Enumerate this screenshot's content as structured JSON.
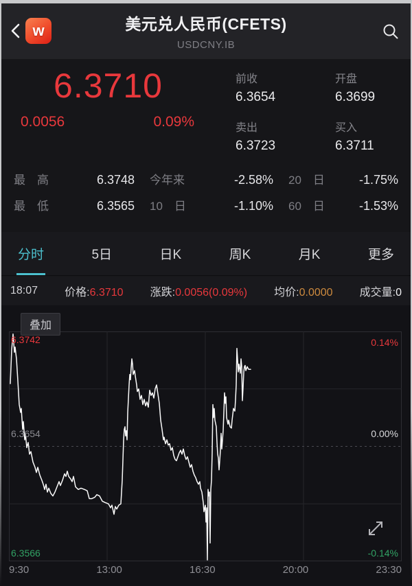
{
  "header": {
    "title": "美元兑人民币(CFETS)",
    "subtitle": "USDCNY.IB",
    "logo_text": "w"
  },
  "quote": {
    "price": "6.3710",
    "change": "0.0056",
    "change_pct": "0.09%",
    "fields": [
      {
        "label": "前收",
        "value": "6.3654"
      },
      {
        "label": "开盘",
        "value": "6.3699"
      },
      {
        "label": "卖出",
        "value": "6.3723"
      },
      {
        "label": "买入",
        "value": "6.3711"
      }
    ]
  },
  "stats": {
    "rows": [
      [
        {
          "label": "最　高",
          "value": "6.3748"
        },
        {
          "label": "今年来",
          "value": "-2.58%"
        },
        {
          "label": "20　日",
          "value": "-1.75%"
        }
      ],
      [
        {
          "label": "最　低",
          "value": "6.3565"
        },
        {
          "label": "10　日",
          "value": "-1.10%"
        },
        {
          "label": "60　日",
          "value": "-1.53%"
        }
      ]
    ]
  },
  "tabs": [
    {
      "label": "分时",
      "active": true
    },
    {
      "label": "5日",
      "active": false
    },
    {
      "label": "日K",
      "active": false
    },
    {
      "label": "周K",
      "active": false
    },
    {
      "label": "月K",
      "active": false
    },
    {
      "label": "更多",
      "active": false
    }
  ],
  "info_bar": {
    "time": "18:07",
    "price_label": "价格:",
    "price": "6.3710",
    "change_label": "涨跌:",
    "change": "0.0056(0.09%)",
    "avg_label": "均价:",
    "avg": "0.0000",
    "volume_label": "成交量:",
    "volume": "0"
  },
  "chart": {
    "overlay_label": "叠加"
  },
  "colors": {
    "up_red": "#e8383c",
    "down_green": "#31a264",
    "accent_cyan": "#4cc0ce",
    "avg_orange": "#cd8a3e",
    "line_white": "#fafafa"
  },
  "chart_data": {
    "type": "line",
    "title": "分时 (intraday)",
    "x_axis_labels": [
      "9:30",
      "13:00",
      "16:30",
      "20:00",
      "23:30"
    ],
    "y_axis_left_labels": [
      "6.3742",
      "6.3654",
      "6.3566"
    ],
    "y_axis_right_labels": [
      "0.14%",
      "0.00%",
      "-0.14%"
    ],
    "y_max": 6.3742,
    "y_min": 6.3566,
    "baseline_prev_close": 6.3654,
    "grid": {
      "v_positions": [
        0.25,
        0.5,
        0.75
      ],
      "h_positions": [
        0.25,
        0.5,
        0.75
      ],
      "mid_dashed": true,
      "legend": "none"
    },
    "series": [
      {
        "name": "price",
        "color": "#fafafa",
        "points": [
          [
            0.0035,
            6.3702
          ],
          [
            0.007,
            6.3728
          ],
          [
            0.0105,
            6.374
          ],
          [
            0.014,
            6.3726
          ],
          [
            0.0157,
            6.373
          ],
          [
            0.0192,
            6.3721
          ],
          [
            0.0227,
            6.3704
          ],
          [
            0.0262,
            6.3686
          ],
          [
            0.0297,
            6.368
          ],
          [
            0.0315,
            6.3683
          ],
          [
            0.035,
            6.3667
          ],
          [
            0.0367,
            6.3673
          ],
          [
            0.0402,
            6.3659
          ],
          [
            0.042,
            6.3664
          ],
          [
            0.0455,
            6.3653
          ],
          [
            0.049,
            6.3657
          ],
          [
            0.0524,
            6.3648
          ],
          [
            0.0559,
            6.365
          ],
          [
            0.0612,
            6.3642
          ],
          [
            0.0664,
            6.3638
          ],
          [
            0.0699,
            6.3634
          ],
          [
            0.0734,
            6.3638
          ],
          [
            0.0787,
            6.3632
          ],
          [
            0.0839,
            6.3628
          ],
          [
            0.0874,
            6.3625
          ],
          [
            0.0909,
            6.3621
          ],
          [
            0.0944,
            6.3625
          ],
          [
            0.0979,
            6.3619
          ],
          [
            0.1014,
            6.3622
          ],
          [
            0.1066,
            6.3618
          ],
          [
            0.1119,
            6.3616
          ],
          [
            0.1171,
            6.3619
          ],
          [
            0.1224,
            6.3623
          ],
          [
            0.1276,
            6.3627
          ],
          [
            0.1311,
            6.3624
          ],
          [
            0.1364,
            6.3628
          ],
          [
            0.1416,
            6.3633
          ],
          [
            0.1451,
            6.3631
          ],
          [
            0.1486,
            6.3635
          ],
          [
            0.1521,
            6.3631
          ],
          [
            0.1573,
            6.3629
          ],
          [
            0.1608,
            6.3627
          ],
          [
            0.1643,
            6.3631
          ],
          [
            0.1696,
            6.3623
          ],
          [
            0.1766,
            6.3621
          ],
          [
            0.1836,
            6.3622
          ],
          [
            0.1923,
            6.3621
          ],
          [
            0.1993,
            6.362
          ],
          [
            0.2045,
            6.3614
          ],
          [
            0.2115,
            6.3614
          ],
          [
            0.2185,
            6.3615
          ],
          [
            0.2238,
            6.3617
          ],
          [
            0.2308,
            6.3616
          ],
          [
            0.2378,
            6.3612
          ],
          [
            0.2448,
            6.3611
          ],
          [
            0.2535,
            6.361
          ],
          [
            0.2587,
            6.3607
          ],
          [
            0.2622,
            6.3609
          ],
          [
            0.2675,
            6.3602
          ],
          [
            0.271,
            6.3608
          ],
          [
            0.2745,
            6.3606
          ],
          [
            0.2797,
            6.3609
          ],
          [
            0.285,
            6.361
          ],
          [
            0.2885,
            6.3628
          ],
          [
            0.292,
            6.3659
          ],
          [
            0.2937,
            6.3667
          ],
          [
            0.2955,
            6.3669
          ],
          [
            0.2972,
            6.3662
          ],
          [
            0.299,
            6.3666
          ],
          [
            0.3007,
            6.3659
          ],
          [
            0.3024,
            6.368
          ],
          [
            0.3059,
            6.3701
          ],
          [
            0.3077,
            6.3709
          ],
          [
            0.3094,
            6.3705
          ],
          [
            0.3112,
            6.3714
          ],
          [
            0.3129,
            6.3721
          ],
          [
            0.3147,
            6.3717
          ],
          [
            0.3164,
            6.3709
          ],
          [
            0.3199,
            6.3712
          ],
          [
            0.3217,
            6.3708
          ],
          [
            0.3252,
            6.3701
          ],
          [
            0.3269,
            6.3696
          ],
          [
            0.3304,
            6.3698
          ],
          [
            0.3339,
            6.369
          ],
          [
            0.3374,
            6.3693
          ],
          [
            0.3409,
            6.3686
          ],
          [
            0.3444,
            6.369
          ],
          [
            0.3479,
            6.3685
          ],
          [
            0.3514,
            6.3688
          ],
          [
            0.3549,
            6.3684
          ],
          [
            0.3584,
            6.3697
          ],
          [
            0.3619,
            6.3693
          ],
          [
            0.3654,
            6.3695
          ],
          [
            0.3689,
            6.3691
          ],
          [
            0.3724,
            6.3698
          ],
          [
            0.3759,
            6.3701
          ],
          [
            0.3794,
            6.3694
          ],
          [
            0.3829,
            6.3687
          ],
          [
            0.3864,
            6.3674
          ],
          [
            0.3899,
            6.3667
          ],
          [
            0.3934,
            6.3659
          ],
          [
            0.3951,
            6.3661
          ],
          [
            0.3986,
            6.3656
          ],
          [
            0.4021,
            6.3659
          ],
          [
            0.4056,
            6.3655
          ],
          [
            0.4091,
            6.3656
          ],
          [
            0.4126,
            6.3651
          ],
          [
            0.4161,
            6.3653
          ],
          [
            0.4196,
            6.3647
          ],
          [
            0.4231,
            6.3644
          ],
          [
            0.4266,
            6.3643
          ],
          [
            0.4301,
            6.3646
          ],
          [
            0.4336,
            6.3649
          ],
          [
            0.4371,
            6.3651
          ],
          [
            0.4406,
            6.3648
          ],
          [
            0.4441,
            6.3652
          ],
          [
            0.4476,
            6.3647
          ],
          [
            0.4511,
            6.3644
          ],
          [
            0.4545,
            6.3646
          ],
          [
            0.458,
            6.3642
          ],
          [
            0.4615,
            6.3638
          ],
          [
            0.465,
            6.364
          ],
          [
            0.4685,
            6.3635
          ],
          [
            0.472,
            6.3632
          ],
          [
            0.4755,
            6.363
          ],
          [
            0.479,
            6.3627
          ],
          [
            0.4825,
            6.3625
          ],
          [
            0.486,
            6.3627
          ],
          [
            0.4878,
            6.3622
          ],
          [
            0.4913,
            6.3619
          ],
          [
            0.4948,
            6.3611
          ],
          [
            0.4965,
            6.3604
          ],
          [
            0.5,
            6.3609
          ],
          [
            0.5017,
            6.3596
          ],
          [
            0.5035,
            6.3607
          ],
          [
            0.5052,
            6.3567
          ],
          [
            0.507,
            6.3621
          ],
          [
            0.5087,
            6.3616
          ],
          [
            0.5105,
            6.3619
          ],
          [
            0.5122,
            6.358
          ],
          [
            0.514,
            6.3621
          ],
          [
            0.5157,
            6.3628
          ],
          [
            0.5175,
            6.3649
          ],
          [
            0.5192,
            6.3686
          ],
          [
            0.521,
            6.3676
          ],
          [
            0.5227,
            6.3683
          ],
          [
            0.5245,
            6.3674
          ],
          [
            0.528,
            6.3669
          ],
          [
            0.5297,
            6.3657
          ],
          [
            0.5315,
            6.3648
          ],
          [
            0.5332,
            6.3645
          ],
          [
            0.535,
            6.3636
          ],
          [
            0.5367,
            6.3643
          ],
          [
            0.5385,
            6.3651
          ],
          [
            0.5402,
            6.3664
          ],
          [
            0.542,
            6.3652
          ],
          [
            0.5437,
            6.3659
          ],
          [
            0.5455,
            6.3666
          ],
          [
            0.5472,
            6.368
          ],
          [
            0.549,
            6.3695
          ],
          [
            0.5507,
            6.3687
          ],
          [
            0.5524,
            6.3692
          ],
          [
            0.5542,
            6.3676
          ],
          [
            0.5577,
            6.3671
          ],
          [
            0.5594,
            6.3674
          ],
          [
            0.5629,
            6.3669
          ],
          [
            0.5664,
            6.3668
          ],
          [
            0.5682,
            6.3674
          ],
          [
            0.5717,
            6.3683
          ],
          [
            0.5752,
            6.3681
          ],
          [
            0.5769,
            6.369
          ],
          [
            0.5787,
            6.3701
          ],
          [
            0.5804,
            6.3729
          ],
          [
            0.5822,
            6.372
          ],
          [
            0.5839,
            6.3711
          ],
          [
            0.5857,
            6.3717
          ],
          [
            0.5892,
            6.371
          ],
          [
            0.5909,
            6.3721
          ],
          [
            0.5927,
            6.3715
          ],
          [
            0.5944,
            6.3689
          ],
          [
            0.5962,
            6.3699
          ],
          [
            0.5979,
            6.3711
          ],
          [
            0.5997,
            6.3715
          ],
          [
            0.6014,
            6.3716
          ],
          [
            0.6031,
            6.3712
          ],
          [
            0.6066,
            6.3715
          ],
          [
            0.6101,
            6.3713
          ],
          [
            0.6119,
            6.3713
          ],
          [
            0.6154,
            6.3713
          ]
        ]
      }
    ]
  }
}
